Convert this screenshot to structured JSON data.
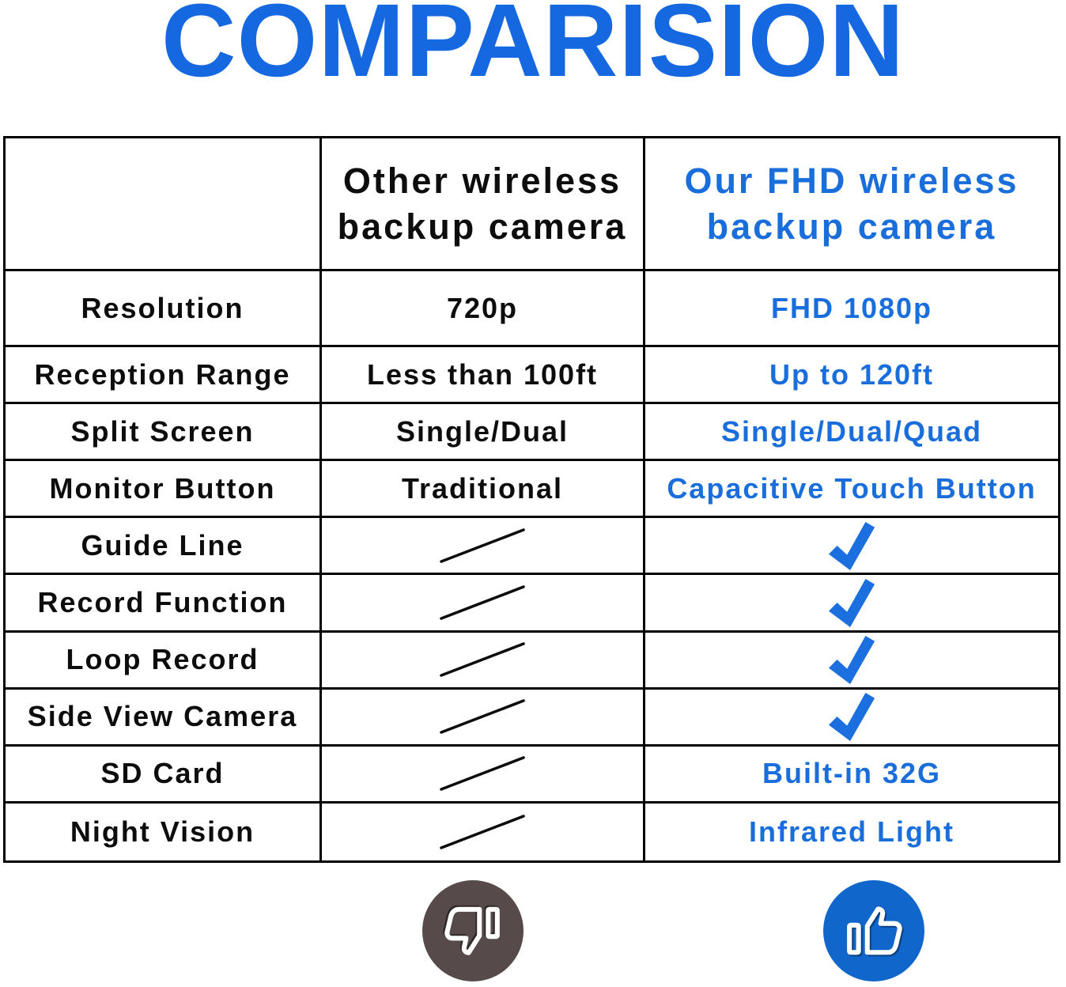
{
  "title": "COMPARISION",
  "chart_data": {
    "type": "table",
    "title": "COMPARISION",
    "columns": [
      "",
      "Other wireless backup camera",
      "Our FHD wireless backup camera"
    ],
    "rows": [
      {
        "feature": "Resolution",
        "other": "720p",
        "ours": "FHD 1080p"
      },
      {
        "feature": "Reception Range",
        "other": "Less than 100ft",
        "ours": "Up to 120ft"
      },
      {
        "feature": "Split Screen",
        "other": "Single/Dual",
        "ours": "Single/Dual/Quad"
      },
      {
        "feature": "Monitor Button",
        "other": "Traditional",
        "ours": "Capacitive Touch Button"
      },
      {
        "feature": "Guide Line",
        "other": {
          "icon": "slash"
        },
        "ours": {
          "icon": "check"
        }
      },
      {
        "feature": "Record Function",
        "other": {
          "icon": "slash"
        },
        "ours": {
          "icon": "check"
        }
      },
      {
        "feature": "Loop Record",
        "other": {
          "icon": "slash"
        },
        "ours": {
          "icon": "check"
        }
      },
      {
        "feature": "Side View Camera",
        "other": {
          "icon": "slash"
        },
        "ours": {
          "icon": "check"
        }
      },
      {
        "feature": "SD Card",
        "other": {
          "icon": "slash"
        },
        "ours": "Built-in 32G"
      },
      {
        "feature": "Night Vision",
        "other": {
          "icon": "slash"
        },
        "ours": "Infrared Light"
      }
    ],
    "legend_position": "none",
    "grid_on": true
  },
  "footer_icons": {
    "other_column": "thumbs-down-icon",
    "ours_column": "thumbs-up-icon"
  },
  "colors": {
    "title_blue": "#1668e0",
    "ours_text_blue": "#1a6edb",
    "check_blue": "#1b6fdf",
    "table_line": "#000000",
    "other_text": "#0d0d0d",
    "thumb_down_circle": "#564a4a",
    "thumb_up_circle": "#1166cb"
  }
}
